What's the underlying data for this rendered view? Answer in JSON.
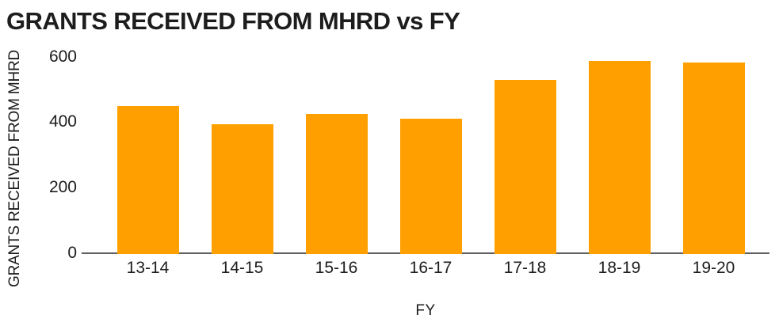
{
  "chart_data": {
    "type": "bar",
    "title": "GRANTS RECEIVED FROM MHRD vs FY",
    "xlabel": "FY",
    "ylabel": "GRANTS RECEIVED FROM MHRD",
    "categories": [
      "13-14",
      "14-15",
      "15-16",
      "16-17",
      "17-18",
      "18-19",
      "19-20"
    ],
    "values": [
      448,
      394,
      423,
      410,
      527,
      584,
      580
    ],
    "yticks": [
      0,
      200,
      400,
      600
    ],
    "ylim": [
      0,
      600
    ],
    "grid": false,
    "legend": false,
    "bar_color": "#FFA000",
    "axis_line_color": "#616161",
    "text_color": "#1d1d1d"
  }
}
